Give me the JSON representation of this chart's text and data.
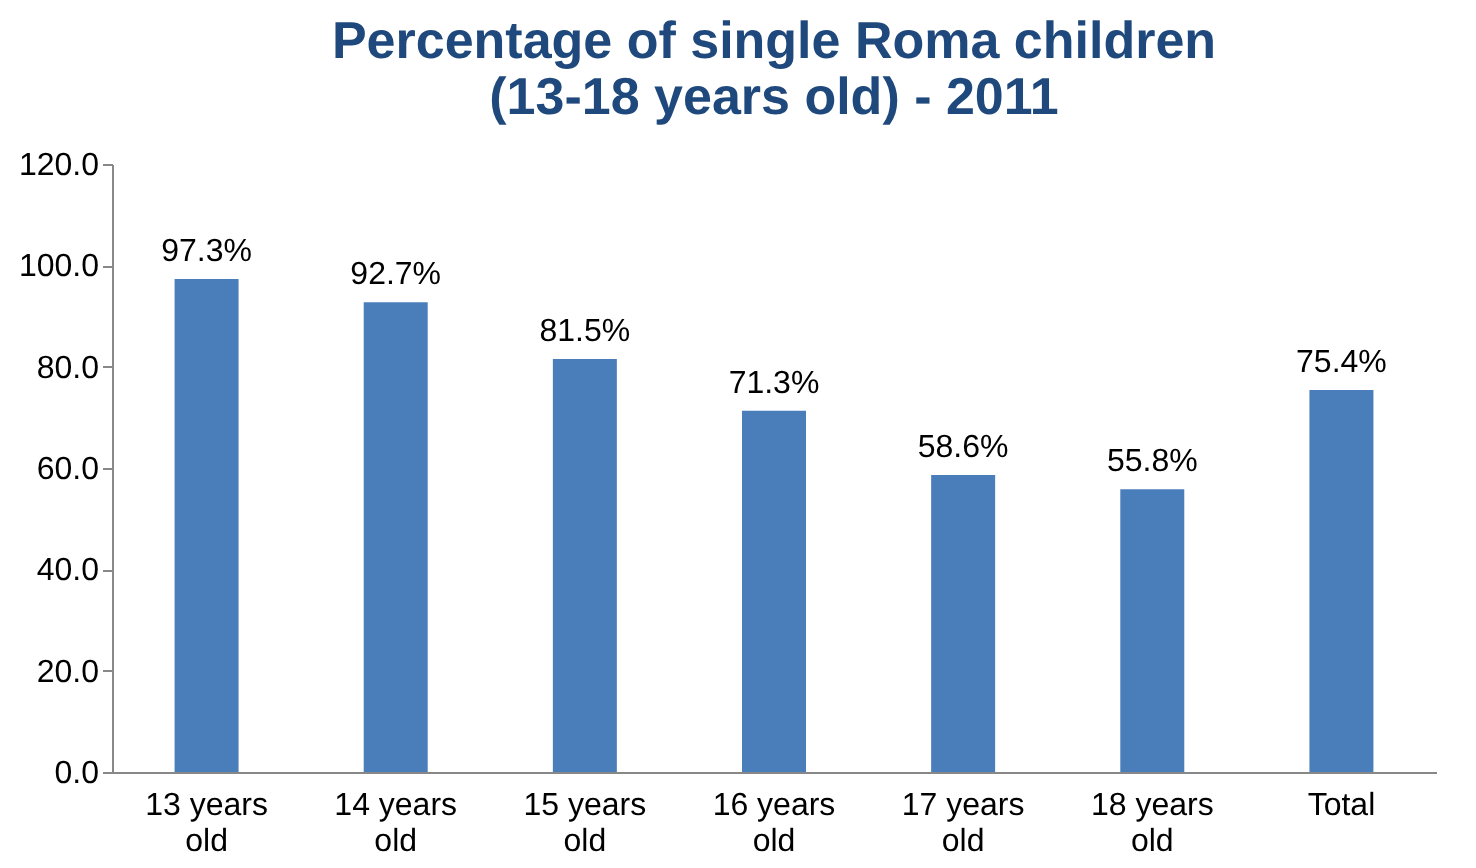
{
  "chart_data": {
    "type": "bar",
    "title": [
      "Percentage of single Roma children",
      "(13-18 years old) - 2011"
    ],
    "categories": [
      "13 years old",
      "14  years old",
      "15  years old",
      "16 years old",
      "17  years old",
      "18  years old",
      "Total"
    ],
    "values": [
      97.3,
      92.7,
      81.5,
      71.3,
      58.6,
      55.8,
      75.4
    ],
    "value_labels": [
      "97.3%",
      "92.7%",
      "81.5%",
      "71.3%",
      "58.6%",
      "55.8%",
      "75.4%"
    ],
    "color": "#4a7ebb",
    "ylim": [
      0,
      120
    ],
    "yticks": [
      {
        "value": 0,
        "label": "0.0"
      },
      {
        "value": 20,
        "label": "20.0"
      },
      {
        "value": 40,
        "label": "40.0"
      },
      {
        "value": 60,
        "label": "60.0"
      },
      {
        "value": 80,
        "label": "80.0"
      },
      {
        "value": 100,
        "label": "100.0"
      },
      {
        "value": 120,
        "label": "120.0"
      }
    ],
    "grid": false
  }
}
